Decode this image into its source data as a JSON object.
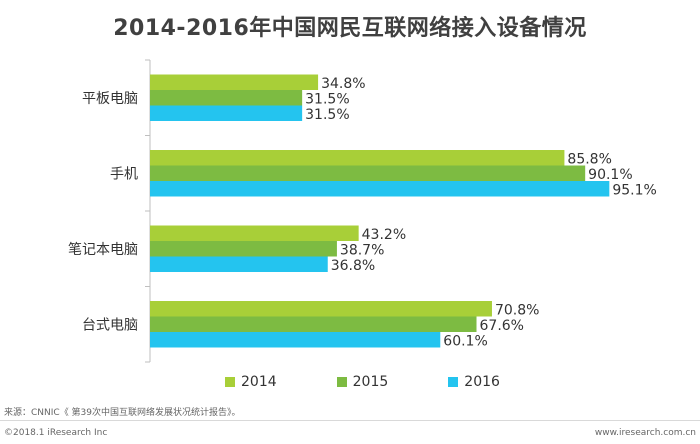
{
  "colors": {
    "s2014": "#a8cf38",
    "s2015": "#7dbb42",
    "s2016": "#24c4ef"
  },
  "chart_data": {
    "type": "bar",
    "orientation": "horizontal",
    "title": "2014-2016年中国网民互联网络接入设备情况",
    "categories": [
      "平板电脑",
      "手机",
      "笔记本电脑",
      "台式电脑"
    ],
    "series": [
      {
        "name": "2014",
        "values": [
          34.8,
          85.8,
          43.2,
          70.8
        ],
        "labels": [
          "34.8%",
          "85.8%",
          "43.2%",
          "70.8%"
        ]
      },
      {
        "name": "2015",
        "values": [
          31.5,
          90.1,
          38.7,
          67.6
        ],
        "labels": [
          "31.5%",
          "90.1%",
          "38.7%",
          "67.6%"
        ]
      },
      {
        "name": "2016",
        "values": [
          31.5,
          95.1,
          36.8,
          60.1
        ],
        "labels": [
          "31.5%",
          "95.1%",
          "36.8%",
          "60.1%"
        ]
      }
    ],
    "unit": "%",
    "xlim": [
      0,
      100
    ],
    "grid": false,
    "legend_position": "bottom"
  },
  "footer": {
    "source": "来源：CNNIC《 第39次中国互联网络发展状况统计报告》。",
    "copyright": "©2018.1 iResearch Inc",
    "website": "www.iresearch.com.cn"
  }
}
